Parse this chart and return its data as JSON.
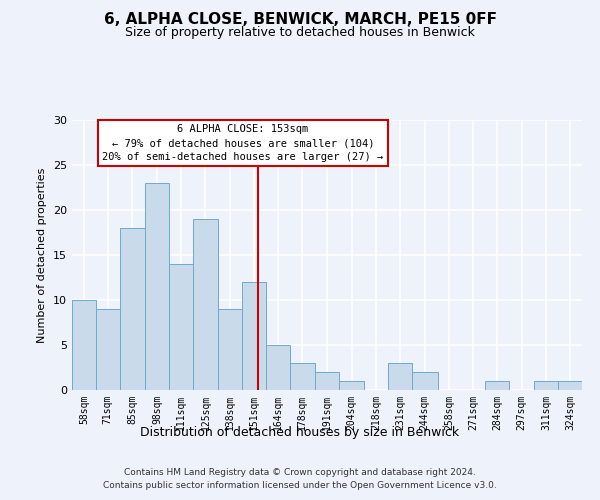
{
  "title": "6, ALPHA CLOSE, BENWICK, MARCH, PE15 0FF",
  "subtitle": "Size of property relative to detached houses in Benwick",
  "xlabel": "Distribution of detached houses by size in Benwick",
  "ylabel": "Number of detached properties",
  "footer_line1": "Contains HM Land Registry data © Crown copyright and database right 2024.",
  "footer_line2": "Contains public sector information licensed under the Open Government Licence v3.0.",
  "bin_labels": [
    "58sqm",
    "71sqm",
    "85sqm",
    "98sqm",
    "111sqm",
    "125sqm",
    "138sqm",
    "151sqm",
    "164sqm",
    "178sqm",
    "191sqm",
    "204sqm",
    "218sqm",
    "231sqm",
    "244sqm",
    "258sqm",
    "271sqm",
    "284sqm",
    "297sqm",
    "311sqm",
    "324sqm"
  ],
  "bin_edges": [
    51.5,
    64.5,
    77.5,
    91.5,
    104.5,
    117.5,
    131.5,
    144.5,
    157.5,
    170.5,
    184.5,
    197.5,
    211.5,
    224.5,
    237.5,
    251.5,
    264.5,
    277.5,
    290.5,
    304.5,
    317.5,
    330.5
  ],
  "counts": [
    10,
    9,
    18,
    23,
    14,
    19,
    9,
    12,
    5,
    3,
    2,
    1,
    0,
    3,
    2,
    0,
    0,
    1,
    0,
    1,
    1
  ],
  "bar_color": "#c9daea",
  "bar_edge_color": "#6fa8d0",
  "vline_x": 153,
  "vline_color": "#cc0000",
  "annotation_title": "6 ALPHA CLOSE: 153sqm",
  "annotation_line1": "← 79% of detached houses are smaller (104)",
  "annotation_line2": "20% of semi-detached houses are larger (27) →",
  "annotation_box_color": "#ffffff",
  "annotation_box_edge_color": "#cc0000",
  "ylim": [
    0,
    30
  ],
  "yticks": [
    0,
    5,
    10,
    15,
    20,
    25,
    30
  ],
  "background_color": "#eef2fa"
}
